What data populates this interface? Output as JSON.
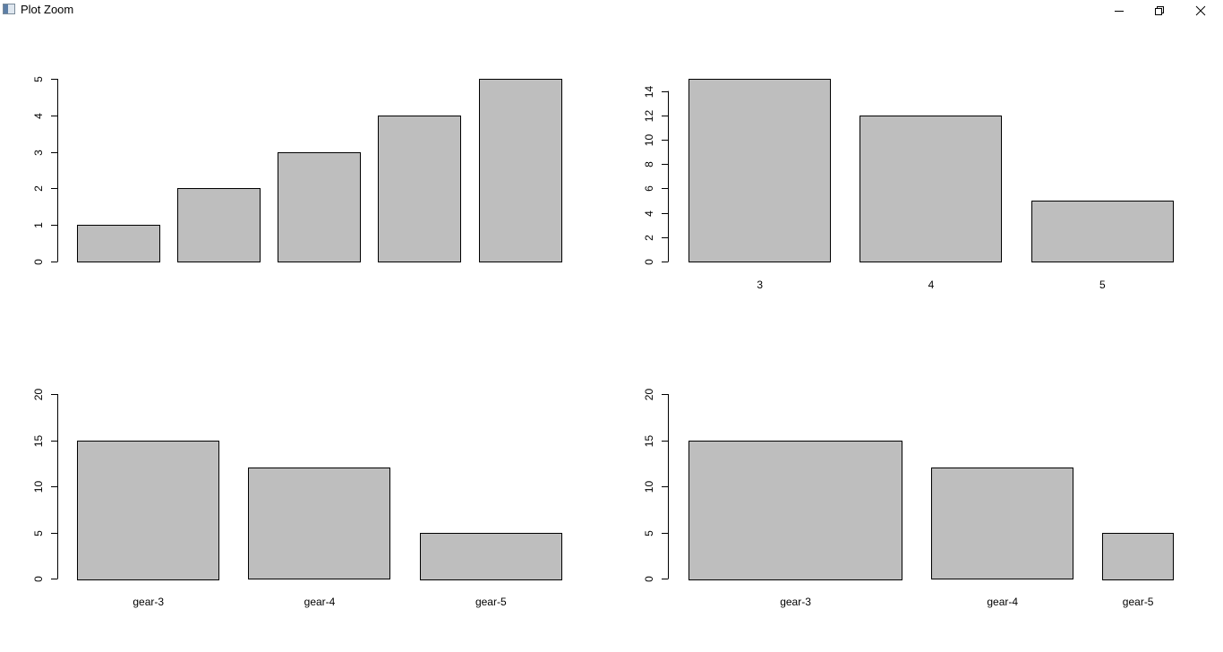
{
  "window": {
    "title": "Plot Zoom",
    "icons": [
      "app-icon",
      "minimize-icon",
      "restore-icon",
      "close-icon"
    ]
  },
  "colors": {
    "bar_fill": "#bebebe",
    "bar_stroke": "#000000",
    "background": "#ffffff"
  },
  "chart_data": [
    {
      "type": "bar",
      "position": "top-left",
      "categories": [
        "",
        "",
        "",
        "",
        ""
      ],
      "values": [
        1,
        2,
        3,
        4,
        5
      ],
      "ylim": [
        0,
        5
      ],
      "yticks": [
        0,
        1,
        2,
        3,
        4,
        5
      ],
      "widths": [
        1,
        1,
        1,
        1,
        1
      ],
      "show_xlabels": false
    },
    {
      "type": "bar",
      "position": "top-right",
      "categories": [
        "3",
        "4",
        "5"
      ],
      "values": [
        15,
        12,
        5
      ],
      "ylim": [
        0,
        15
      ],
      "yticks": [
        0,
        2,
        4,
        6,
        8,
        10,
        12,
        14
      ],
      "widths": [
        1,
        1,
        1
      ],
      "show_xlabels": true
    },
    {
      "type": "bar",
      "position": "bottom-left",
      "categories": [
        "gear-3",
        "gear-4",
        "gear-5"
      ],
      "values": [
        15,
        12,
        5
      ],
      "ylim": [
        0,
        20
      ],
      "yticks": [
        0,
        5,
        10,
        15,
        20
      ],
      "widths": [
        1,
        1,
        1
      ],
      "show_xlabels": true
    },
    {
      "type": "bar",
      "position": "bottom-right",
      "categories": [
        "gear-3",
        "gear-4",
        "gear-5"
      ],
      "values": [
        15,
        12,
        5
      ],
      "ylim": [
        0,
        20
      ],
      "yticks": [
        0,
        5,
        10,
        15,
        20
      ],
      "widths": [
        3,
        2,
        1
      ],
      "show_xlabels": true
    }
  ]
}
